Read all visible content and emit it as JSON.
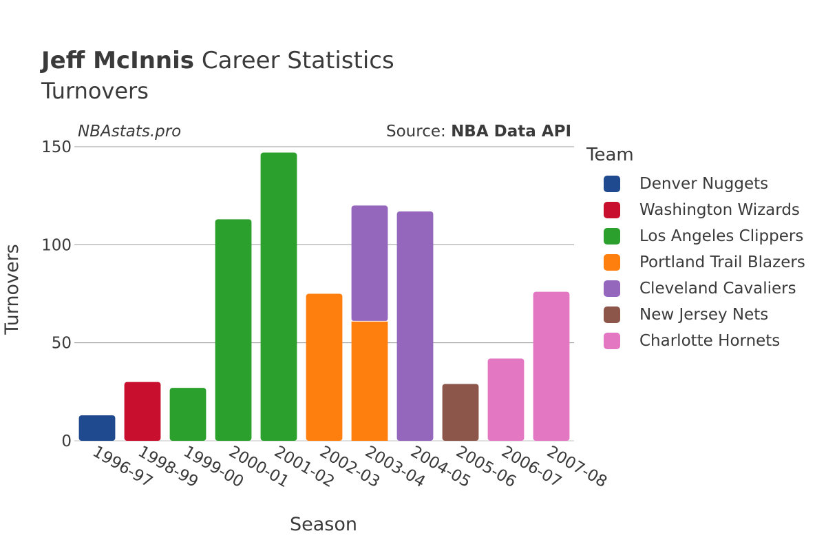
{
  "header": {
    "title_bold": "Jeff McInnis",
    "title_rest": " Career Statistics",
    "subtitle": "Turnovers",
    "brand": "NBAstats.pro",
    "source_prefix": "Source: ",
    "source_name": "NBA Data API"
  },
  "legend": {
    "title": "Team",
    "items": [
      {
        "label": "Denver Nuggets",
        "color": "#1f4a8f"
      },
      {
        "label": "Washington Wizards",
        "color": "#c8102e"
      },
      {
        "label": "Los Angeles Clippers",
        "color": "#2ca02c"
      },
      {
        "label": "Portland Trail Blazers",
        "color": "#ff7f0e"
      },
      {
        "label": "Cleveland Cavaliers",
        "color": "#9467bd"
      },
      {
        "label": "New Jersey Nets",
        "color": "#8c564b"
      },
      {
        "label": "Charlotte Hornets",
        "color": "#e377c2"
      }
    ]
  },
  "chart_data": {
    "type": "bar",
    "stacked": true,
    "title": "Jeff McInnis Career Statistics",
    "subtitle": "Turnovers",
    "xlabel": "Season",
    "ylabel": "Turnovers",
    "ylim": [
      0,
      150
    ],
    "yticks": [
      0,
      50,
      100,
      150
    ],
    "grid": true,
    "legend_position": "right",
    "categories": [
      "1996-97",
      "1998-99",
      "1999-00",
      "2000-01",
      "2001-02",
      "2002-03",
      "2003-04",
      "2004-05",
      "2005-06",
      "2006-07",
      "2007-08"
    ],
    "series": [
      {
        "name": "Denver Nuggets",
        "color": "#1f4a8f",
        "values": [
          13,
          0,
          0,
          0,
          0,
          0,
          0,
          0,
          0,
          0,
          0
        ]
      },
      {
        "name": "Washington Wizards",
        "color": "#c8102e",
        "values": [
          0,
          30,
          0,
          0,
          0,
          0,
          0,
          0,
          0,
          0,
          0
        ]
      },
      {
        "name": "Los Angeles Clippers",
        "color": "#2ca02c",
        "values": [
          0,
          0,
          27,
          113,
          147,
          0,
          0,
          0,
          0,
          0,
          0
        ]
      },
      {
        "name": "Portland Trail Blazers",
        "color": "#ff7f0e",
        "values": [
          0,
          0,
          0,
          0,
          0,
          75,
          61,
          0,
          0,
          0,
          0
        ]
      },
      {
        "name": "Cleveland Cavaliers",
        "color": "#9467bd",
        "values": [
          0,
          0,
          0,
          0,
          0,
          0,
          59,
          117,
          0,
          0,
          0
        ]
      },
      {
        "name": "New Jersey Nets",
        "color": "#8c564b",
        "values": [
          0,
          0,
          0,
          0,
          0,
          0,
          0,
          0,
          29,
          0,
          0
        ]
      },
      {
        "name": "Charlotte Hornets",
        "color": "#e377c2",
        "values": [
          0,
          0,
          0,
          0,
          0,
          0,
          0,
          0,
          0,
          42,
          76
        ]
      }
    ]
  }
}
